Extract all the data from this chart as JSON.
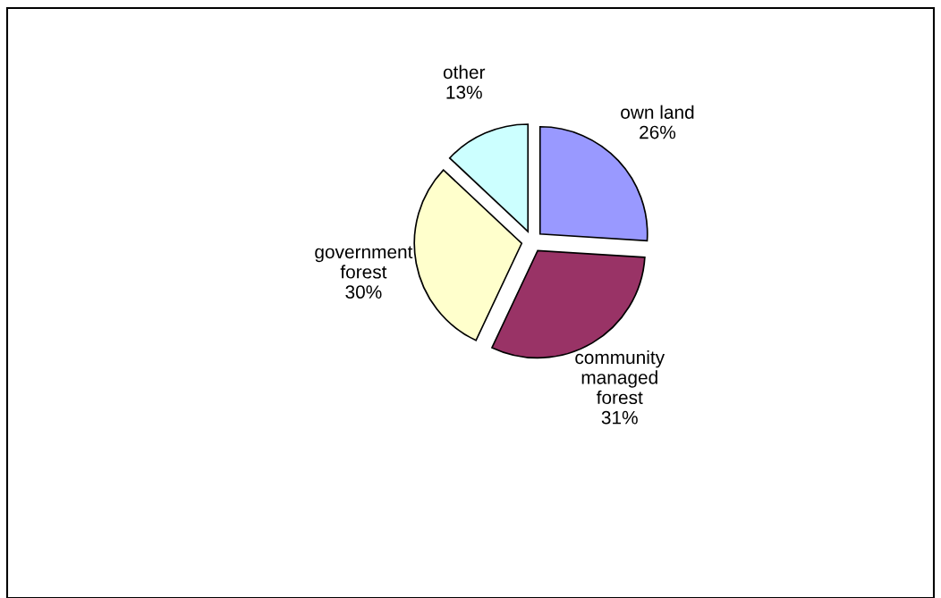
{
  "chart_data": {
    "type": "pie",
    "categories": [
      "own land",
      "community\nmanaged\nforest",
      "government\nforest",
      "other"
    ],
    "values": [
      26,
      31,
      30,
      13
    ],
    "value_labels": [
      "26%",
      "31%",
      "30%",
      "13%"
    ],
    "colors": [
      "#9999ff",
      "#993366",
      "#ffffcc",
      "#ccffff"
    ],
    "legend": false
  }
}
